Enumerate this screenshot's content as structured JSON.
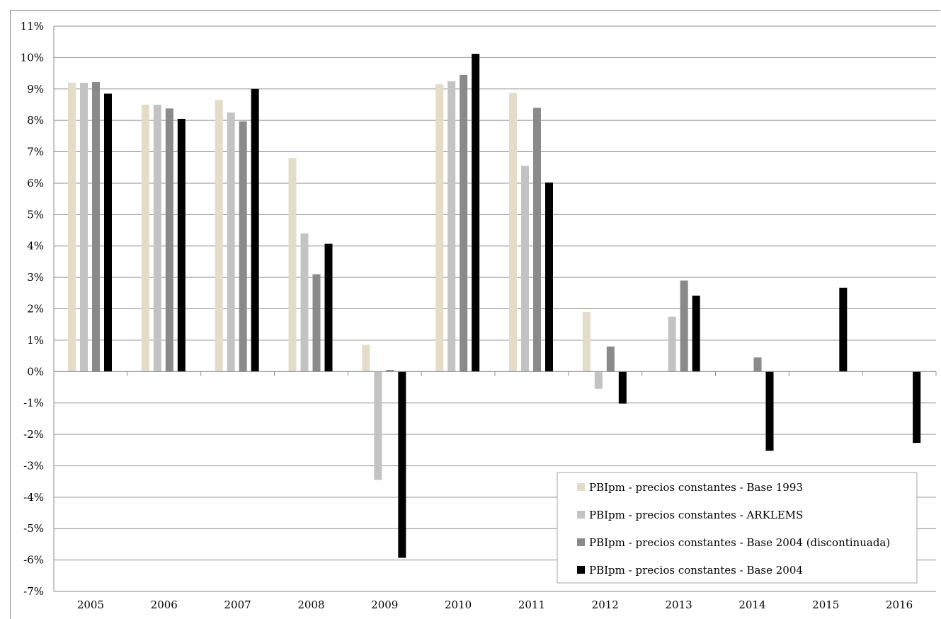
{
  "chart_data": {
    "type": "bar",
    "title": "",
    "xlabel": "",
    "ylabel": "",
    "categories": [
      "2005",
      "2006",
      "2007",
      "2008",
      "2009",
      "2010",
      "2011",
      "2012",
      "2013",
      "2014",
      "2015",
      "2016"
    ],
    "y_ticks": [
      "11%",
      "10%",
      "9%",
      "8%",
      "7%",
      "6%",
      "5%",
      "4%",
      "3%",
      "2%",
      "1%",
      "0%",
      "-1%",
      "-2%",
      "-3%",
      "-4%",
      "-5%",
      "-6%",
      "-7%"
    ],
    "ylim": [
      -7,
      11
    ],
    "grid": true,
    "legend_position": "bottom-right, inside plot",
    "series": [
      {
        "name": "PBIpm - precios constantes - Base 1993",
        "color": "#e3dcc9",
        "values": [
          9.2,
          8.5,
          8.65,
          6.8,
          0.85,
          9.15,
          8.88,
          1.9,
          null,
          null,
          null,
          null
        ]
      },
      {
        "name": "PBIpm - precios constantes - ARKLEMS",
        "color": "#c3c3c3",
        "values": [
          9.2,
          8.5,
          8.25,
          4.4,
          -3.45,
          9.25,
          6.55,
          -0.55,
          1.75,
          null,
          null,
          null
        ]
      },
      {
        "name": "PBIpm - precios constantes - Base 2004 (discontinuada)",
        "color": "#8a8a8a",
        "values": [
          9.22,
          8.38,
          7.97,
          3.1,
          0.05,
          9.45,
          8.4,
          0.8,
          2.9,
          0.45,
          null,
          null
        ]
      },
      {
        "name": "PBIpm - precios constantes - Base 2004",
        "color": "#000000",
        "values": [
          8.85,
          8.05,
          9.0,
          4.07,
          -5.93,
          10.12,
          6.02,
          -1.02,
          2.42,
          -2.52,
          2.67,
          -2.27
        ]
      }
    ]
  }
}
